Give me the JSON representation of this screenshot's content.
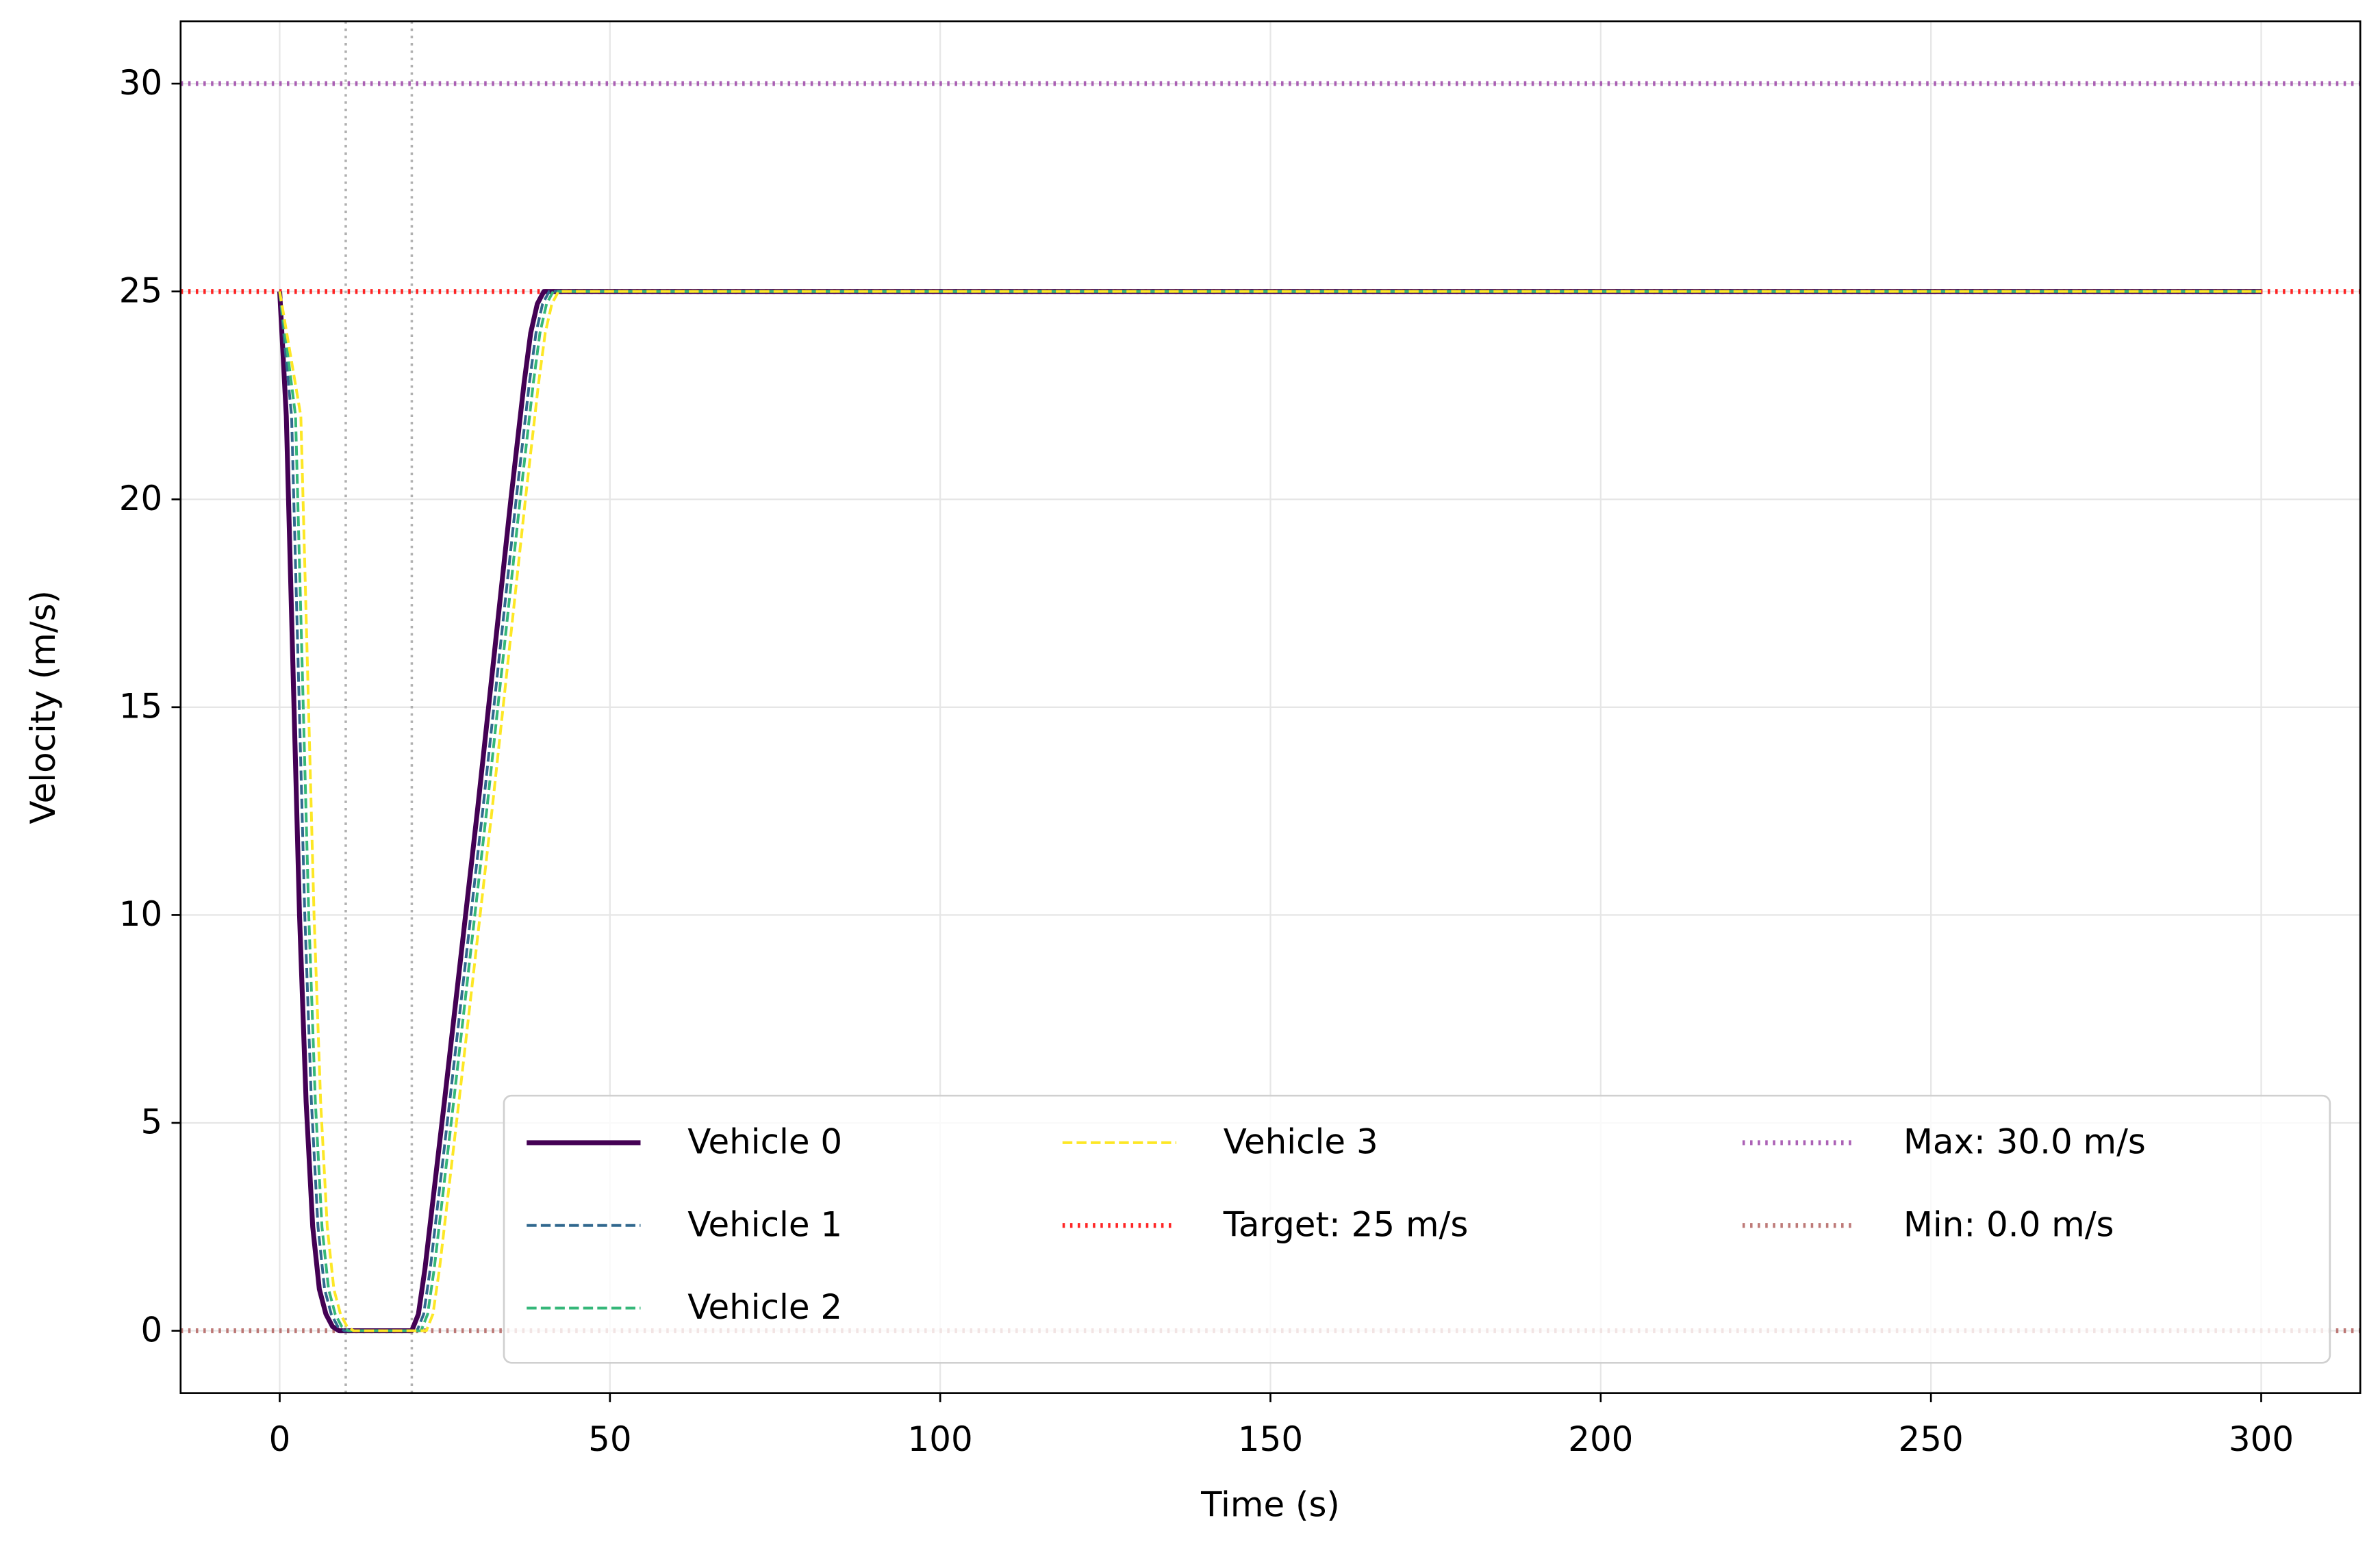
{
  "chart_data": {
    "type": "line",
    "xlabel": "Time (s)",
    "ylabel": "Velocity (m/s)",
    "xlim": [
      -15,
      315
    ],
    "ylim": [
      -1.5,
      31.5
    ],
    "xticks": [
      0,
      50,
      100,
      150,
      200,
      250,
      300
    ],
    "yticks": [
      0,
      5,
      10,
      15,
      20,
      25,
      30
    ],
    "grid": true,
    "series": [
      {
        "name": "Vehicle 0",
        "color": "#440154",
        "style": "solid",
        "x": [
          0,
          1,
          2,
          3,
          4,
          5,
          6,
          7,
          8,
          9,
          10,
          20,
          21,
          22,
          25,
          30,
          35,
          37,
          38,
          39,
          40,
          300
        ],
        "values": [
          25,
          22,
          16,
          10,
          5.5,
          2.5,
          1,
          0.4,
          0.1,
          0,
          0,
          0,
          0.4,
          1.5,
          5.6,
          12.6,
          20,
          22.8,
          24,
          24.7,
          25,
          25
        ]
      },
      {
        "name": "Vehicle 1",
        "color": "#31688e",
        "style": "dashed",
        "x": [
          0,
          1.8,
          2.8,
          3.8,
          4.8,
          5.8,
          6.8,
          7.8,
          8.8,
          9.8,
          20,
          20.8,
          21.8,
          22.8,
          25.8,
          30.8,
          35.8,
          37.8,
          38.8,
          39.8,
          40.8,
          300
        ],
        "values": [
          25,
          22,
          16,
          10,
          5.5,
          2.5,
          1,
          0.4,
          0.1,
          0,
          0,
          0,
          0.4,
          1.5,
          5.6,
          12.6,
          20,
          22.8,
          24,
          24.7,
          25,
          25
        ]
      },
      {
        "name": "Vehicle 2",
        "color": "#35b779",
        "style": "dashed",
        "x": [
          0,
          2.4,
          3.4,
          4.4,
          5.4,
          6.4,
          7.4,
          8.4,
          9.4,
          10.4,
          20,
          21.4,
          22.4,
          23.4,
          26.4,
          31.4,
          36.4,
          38.4,
          39.4,
          40.4,
          41.4,
          300
        ],
        "values": [
          25,
          22,
          16,
          10,
          5.5,
          2.5,
          1,
          0.4,
          0.1,
          0,
          0,
          0,
          0.4,
          1.5,
          5.6,
          12.6,
          20,
          22.8,
          24,
          24.7,
          25,
          25
        ]
      },
      {
        "name": "Vehicle 3",
        "color": "#fde725",
        "style": "dashed",
        "x": [
          0,
          3.2,
          4.2,
          5.2,
          6.2,
          7.2,
          8.2,
          9.2,
          10.2,
          11.2,
          20,
          22.2,
          23.2,
          24.2,
          27.2,
          32.2,
          37.2,
          39.2,
          40.2,
          41.2,
          42.2,
          300
        ],
        "values": [
          25,
          22,
          16,
          10,
          5.5,
          2.5,
          1,
          0.4,
          0.1,
          0,
          0,
          0,
          0.4,
          1.5,
          5.6,
          12.6,
          20,
          22.8,
          24,
          24.7,
          25,
          25
        ]
      }
    ],
    "hlines": [
      {
        "name": "Target: 25 m/s",
        "value": 25,
        "color": "#ff0000",
        "style": "dotted"
      },
      {
        "name": "Max: 30.0 m/s",
        "value": 30,
        "color": "#9c45a8",
        "style": "dotted"
      },
      {
        "name": "Min: 0.0 m/s",
        "value": 0,
        "color": "#b36360",
        "style": "dotted"
      }
    ],
    "vlines": [
      10,
      20
    ],
    "vline_color": "#b0b0b0",
    "legend": "lower right"
  }
}
